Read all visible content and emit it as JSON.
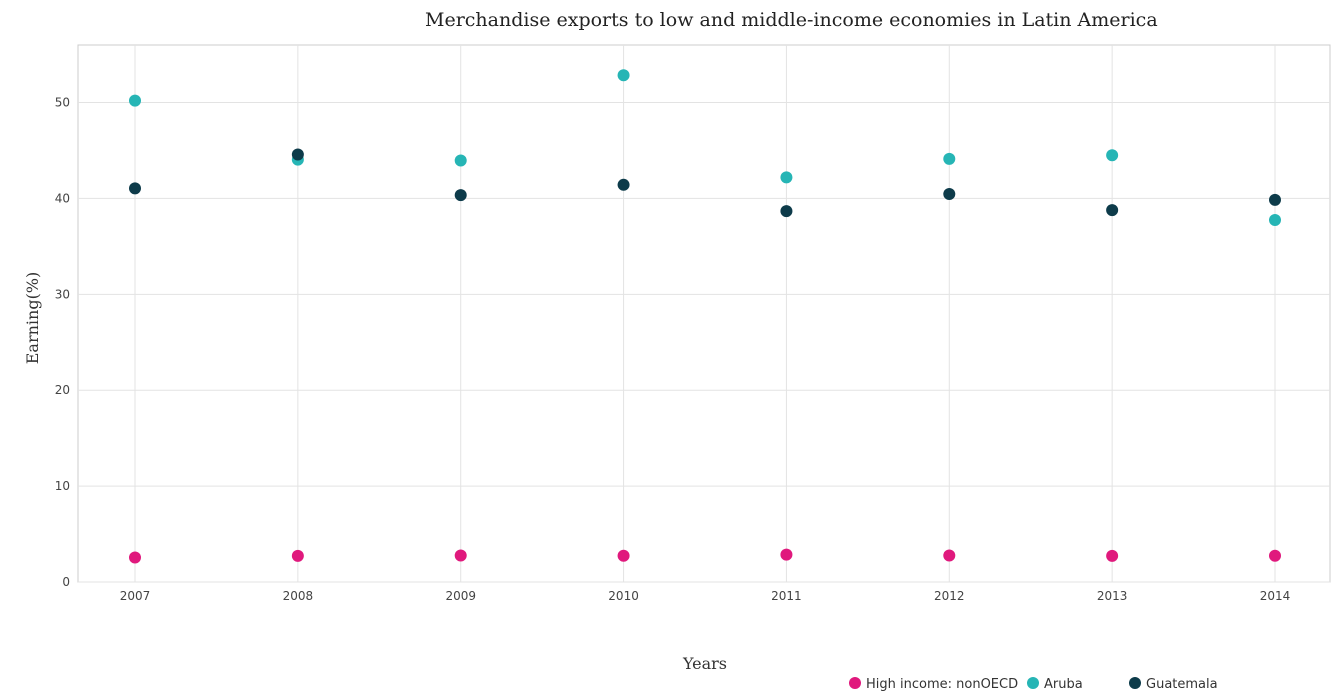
{
  "chart_data": {
    "type": "scatter",
    "title": "Merchandise exports to low and middle-income economies in Latin America",
    "xlabel": "Years",
    "ylabel": "Earning(%)",
    "categories": [
      "2007",
      "2008",
      "2009",
      "2010",
      "2011",
      "2012",
      "2013",
      "2014"
    ],
    "ylim": [
      0,
      56
    ],
    "yticks": [
      0,
      10,
      20,
      30,
      40,
      50
    ],
    "grid": true,
    "legend_position": "bottom-right",
    "series": [
      {
        "name": "High income: nonOECD",
        "color": "#e0197d",
        "values": [
          2.55,
          2.73,
          2.76,
          2.74,
          2.86,
          2.76,
          2.73,
          2.74
        ]
      },
      {
        "name": "Aruba",
        "color": "#26b5b5",
        "values": [
          50.2,
          44.05,
          43.95,
          52.85,
          42.2,
          44.12,
          44.5,
          37.75
        ]
      },
      {
        "name": "Guatemala",
        "color": "#0d3b4a",
        "values": [
          41.05,
          44.58,
          40.35,
          41.42,
          38.68,
          40.46,
          38.78,
          39.85
        ]
      }
    ]
  }
}
